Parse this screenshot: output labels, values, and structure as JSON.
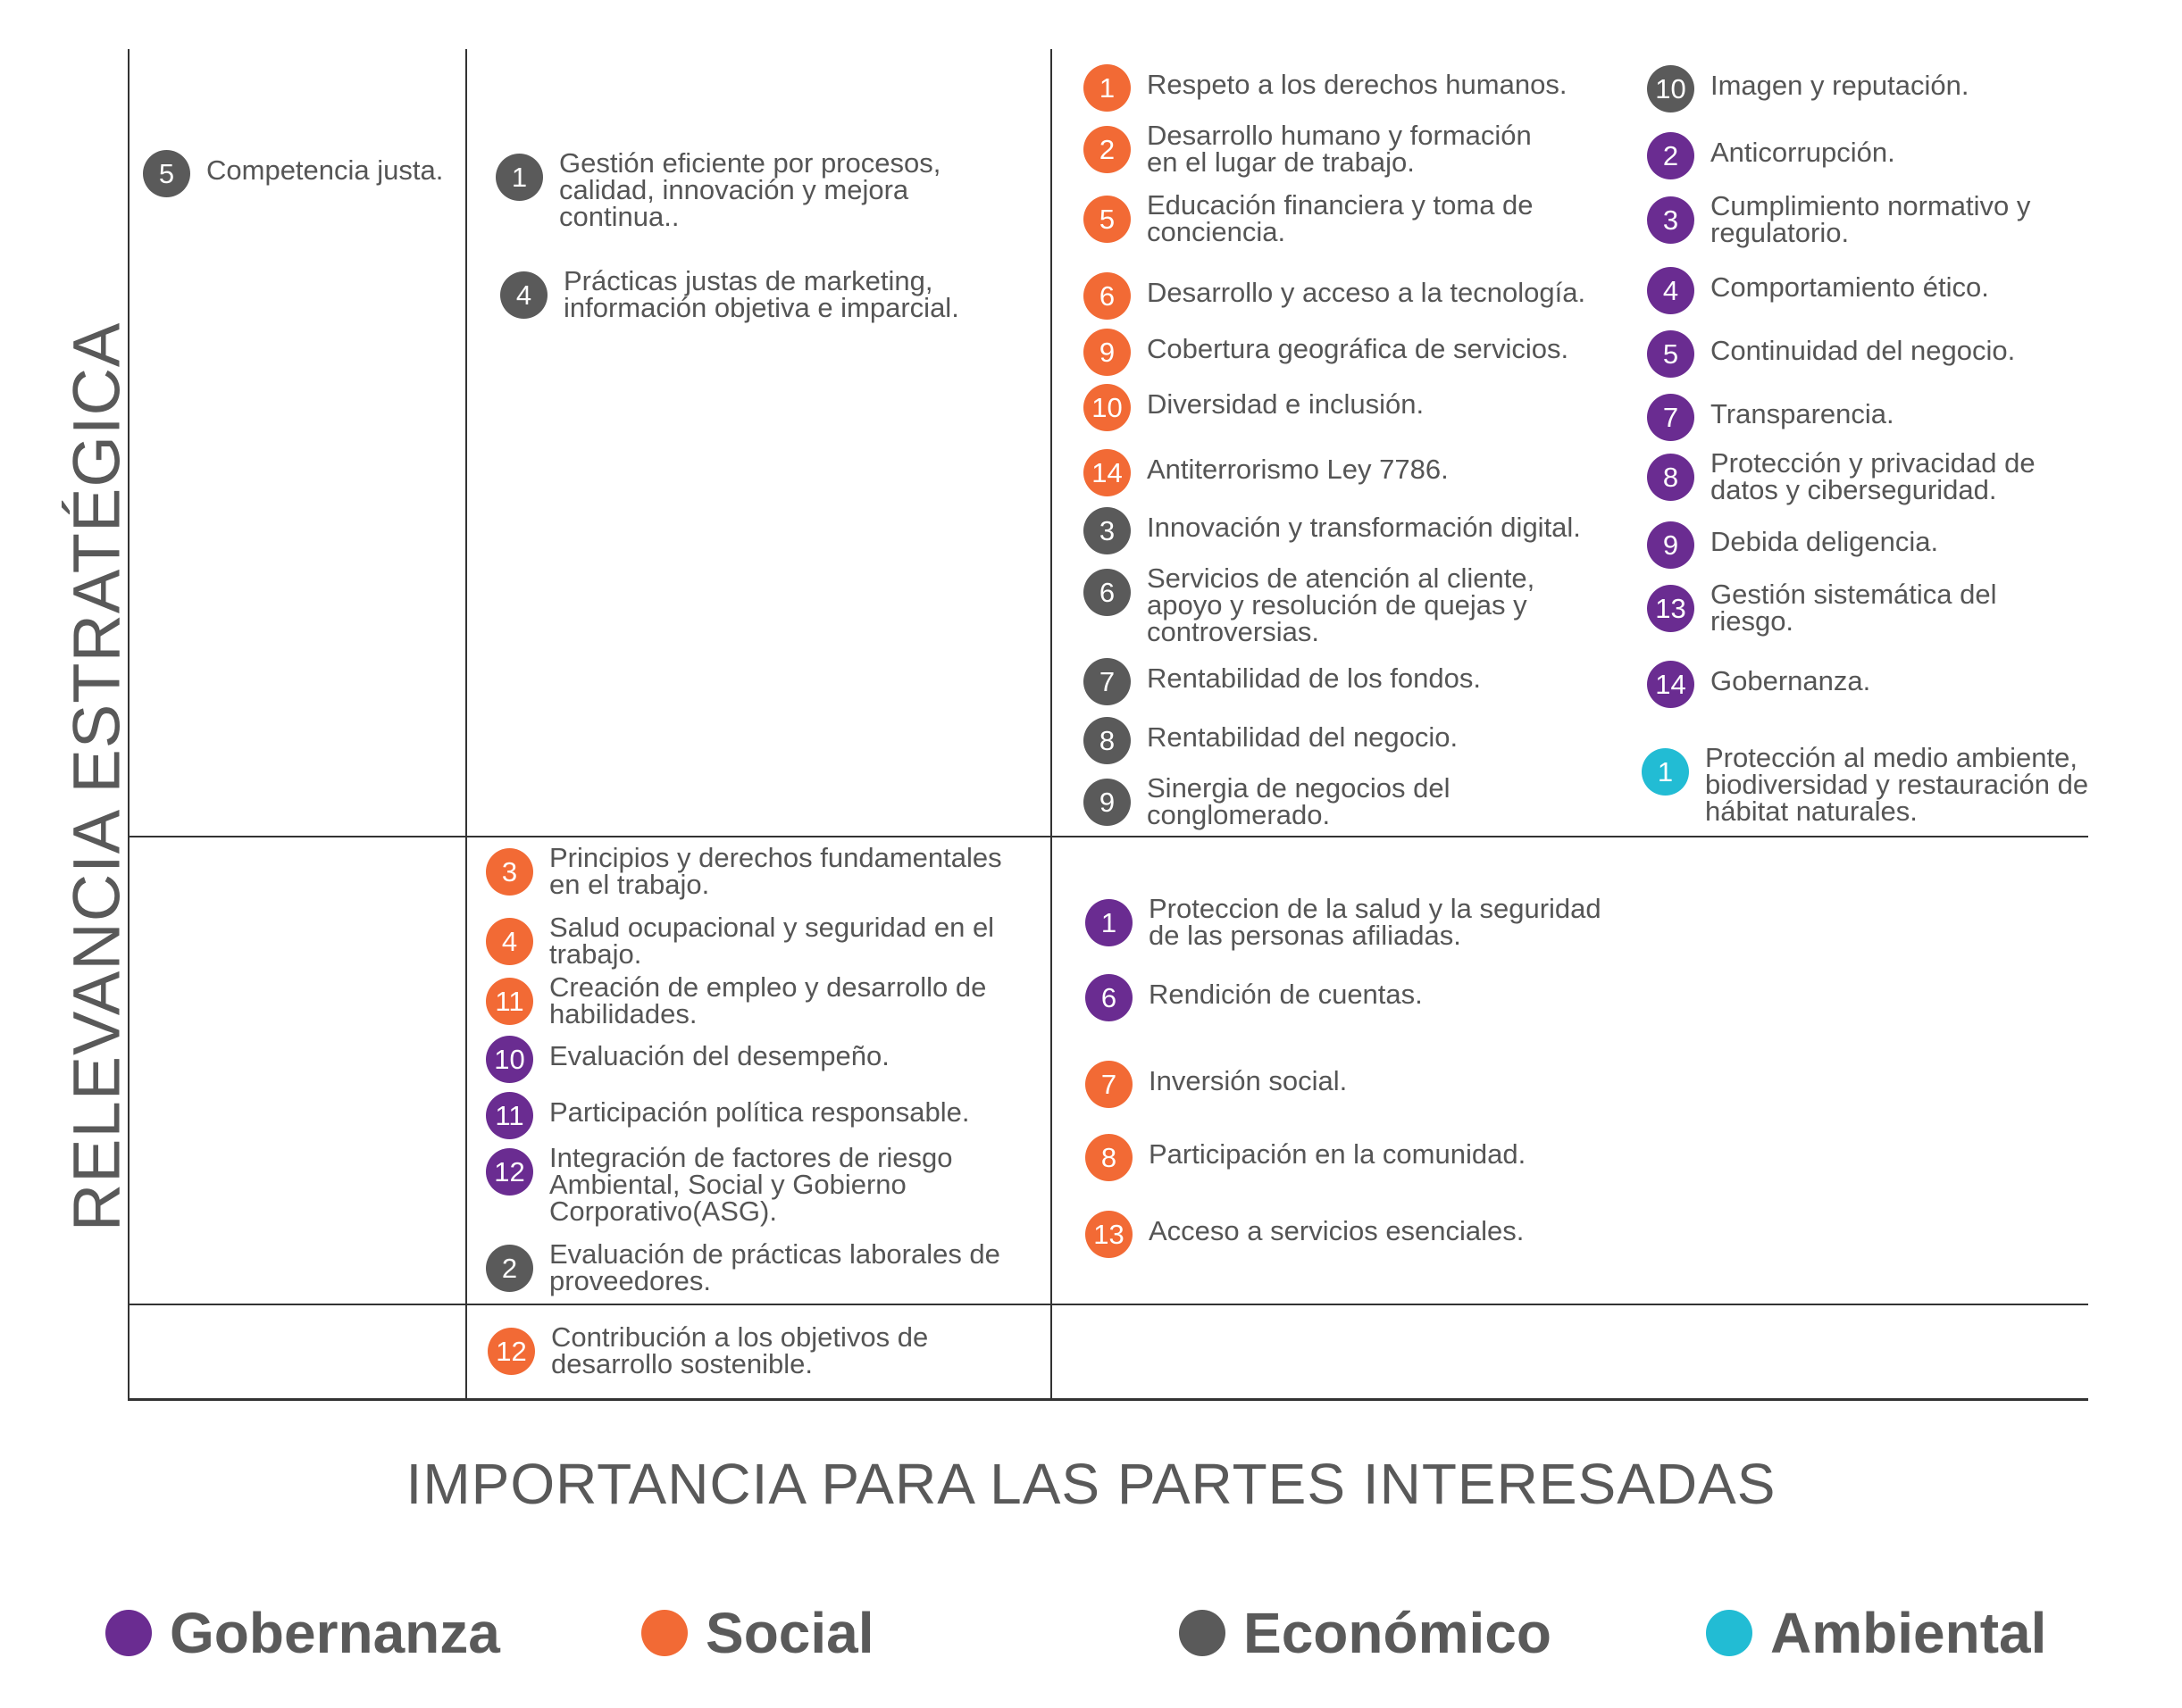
{
  "colors": {
    "gobernanza": "#6a2c91",
    "social": "#f26a35",
    "economico": "#5a5a5a",
    "ambiental": "#22bcd4"
  },
  "axes": {
    "y_label": "RELEVANCIA ESTRATÉGICA",
    "x_label": "IMPORTANCIA PARA LAS PARTES INTERESADAS"
  },
  "items": [
    {
      "num": "5",
      "cat": "economico",
      "lines": [
        "Competencia justa."
      ]
    },
    {
      "num": "1",
      "cat": "economico",
      "lines": [
        "Gestión eficiente por procesos,",
        "calidad, innovación y mejora",
        "continua.."
      ]
    },
    {
      "num": "4",
      "cat": "economico",
      "lines": [
        "Prácticas justas de marketing,",
        "información objetiva e imparcial."
      ]
    },
    {
      "num": "1",
      "cat": "social",
      "lines": [
        "Respeto a los derechos humanos."
      ]
    },
    {
      "num": "2",
      "cat": "social",
      "lines": [
        "Desarrollo humano y formación",
        "en el lugar de trabajo."
      ]
    },
    {
      "num": "5",
      "cat": "social",
      "lines": [
        "Educación financiera y toma de",
        "conciencia."
      ]
    },
    {
      "num": "6",
      "cat": "social",
      "lines": [
        "Desarrollo y acceso a la tecnología."
      ]
    },
    {
      "num": "9",
      "cat": "social",
      "lines": [
        "Cobertura geográfica de servicios."
      ]
    },
    {
      "num": "10",
      "cat": "social",
      "lines": [
        "Diversidad e inclusión."
      ]
    },
    {
      "num": "14",
      "cat": "social",
      "lines": [
        "Antiterrorismo Ley 7786."
      ]
    },
    {
      "num": "3",
      "cat": "economico",
      "lines": [
        "Innovación y transformación digital."
      ]
    },
    {
      "num": "6",
      "cat": "economico",
      "lines": [
        "Servicios de atención al cliente,",
        "apoyo y resolución de quejas y",
        "controversias."
      ]
    },
    {
      "num": "7",
      "cat": "economico",
      "lines": [
        "Rentabilidad de los fondos."
      ]
    },
    {
      "num": "8",
      "cat": "economico",
      "lines": [
        "Rentabilidad del negocio."
      ]
    },
    {
      "num": "9",
      "cat": "economico",
      "lines": [
        "Sinergia de negocios del",
        "conglomerado."
      ]
    },
    {
      "num": "10",
      "cat": "economico",
      "lines": [
        "Imagen y reputación."
      ]
    },
    {
      "num": "2",
      "cat": "gobernanza",
      "lines": [
        "Anticorrupción."
      ]
    },
    {
      "num": "3",
      "cat": "gobernanza",
      "lines": [
        "Cumplimiento normativo y",
        "regulatorio."
      ]
    },
    {
      "num": "4",
      "cat": "gobernanza",
      "lines": [
        "Comportamiento ético."
      ]
    },
    {
      "num": "5",
      "cat": "gobernanza",
      "lines": [
        "Continuidad del negocio."
      ]
    },
    {
      "num": "7",
      "cat": "gobernanza",
      "lines": [
        "Transparencia."
      ]
    },
    {
      "num": "8",
      "cat": "gobernanza",
      "lines": [
        "Protección y privacidad de",
        "datos y ciberseguridad."
      ]
    },
    {
      "num": "9",
      "cat": "gobernanza",
      "lines": [
        "Debida deligencia."
      ]
    },
    {
      "num": "13",
      "cat": "gobernanza",
      "lines": [
        "Gestión sistemática del",
        "riesgo."
      ]
    },
    {
      "num": "14",
      "cat": "gobernanza",
      "lines": [
        "Gobernanza."
      ]
    },
    {
      "num": "1",
      "cat": "ambiental",
      "lines": [
        "Protección al medio ambiente,",
        "biodiversidad y restauración de",
        "hábitat naturales."
      ]
    },
    {
      "num": "3",
      "cat": "social",
      "lines": [
        "Principios y derechos fundamentales",
        "en el trabajo."
      ]
    },
    {
      "num": "4",
      "cat": "social",
      "lines": [
        "Salud ocupacional y seguridad en el",
        "trabajo."
      ]
    },
    {
      "num": "11",
      "cat": "social",
      "lines": [
        "Creación de empleo y desarrollo de",
        "habilidades."
      ]
    },
    {
      "num": "10",
      "cat": "gobernanza",
      "lines": [
        "Evaluación del desempeño."
      ]
    },
    {
      "num": "11",
      "cat": "gobernanza",
      "lines": [
        "Participación política responsable."
      ]
    },
    {
      "num": "12",
      "cat": "gobernanza",
      "lines": [
        "Integración de factores de riesgo",
        "Ambiental, Social y Gobierno",
        "Corporativo(ASG)."
      ]
    },
    {
      "num": "2",
      "cat": "economico",
      "lines": [
        "Evaluación de prácticas laborales de",
        "proveedores."
      ]
    },
    {
      "num": "1",
      "cat": "gobernanza",
      "lines": [
        "Proteccion de la salud y la seguridad",
        "de las personas afiliadas."
      ]
    },
    {
      "num": "6",
      "cat": "gobernanza",
      "lines": [
        "Rendición de cuentas."
      ]
    },
    {
      "num": "7",
      "cat": "social",
      "lines": [
        "Inversión social."
      ]
    },
    {
      "num": "8",
      "cat": "social",
      "lines": [
        "Participación en la comunidad."
      ]
    },
    {
      "num": "13",
      "cat": "social",
      "lines": [
        "Acceso a servicios esenciales."
      ]
    },
    {
      "num": "12",
      "cat": "social",
      "lines": [
        "Contribución a los objetivos de",
        "desarrollo sostenible."
      ]
    }
  ],
  "legend": [
    {
      "label": "Gobernanza",
      "cat": "gobernanza"
    },
    {
      "label": "Social",
      "cat": "social"
    },
    {
      "label": "Económico",
      "cat": "economico"
    },
    {
      "label": "Ambiental",
      "cat": "ambiental"
    }
  ]
}
